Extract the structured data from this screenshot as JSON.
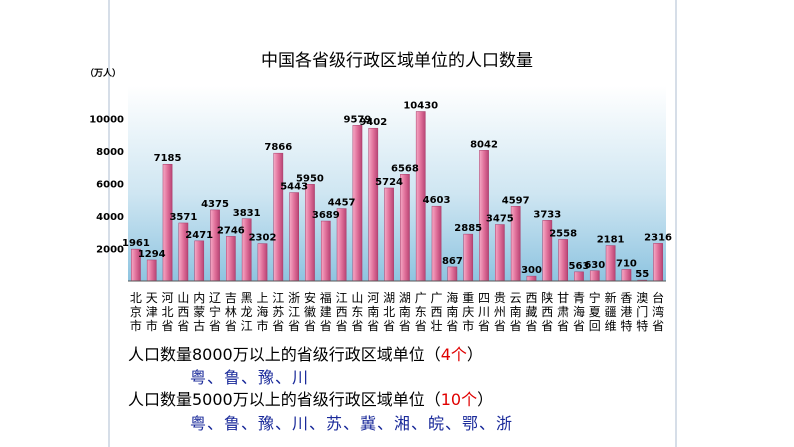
{
  "chart_data": {
    "type": "bar",
    "title": "中国各省级行政区域单位的人口数量",
    "ylabel": "（万人）",
    "ylim": [
      0,
      12000
    ],
    "yticks": [
      "0",
      "2000",
      "4000",
      "6000",
      "8000",
      "10000"
    ],
    "grid": false,
    "bar_color": "#e0709a",
    "categories": [
      {
        "name": "北京市",
        "lines": [
          "北",
          "京",
          "市"
        ]
      },
      {
        "name": "天津市",
        "lines": [
          "天",
          "津",
          "市"
        ]
      },
      {
        "name": "河北省",
        "lines": [
          "河",
          "北",
          "省"
        ]
      },
      {
        "name": "山西省",
        "lines": [
          "山",
          "西",
          "省"
        ]
      },
      {
        "name": "内蒙古",
        "lines": [
          "内",
          "蒙",
          "古"
        ]
      },
      {
        "name": "辽宁省",
        "lines": [
          "辽",
          "宁",
          "省"
        ]
      },
      {
        "name": "吉林省",
        "lines": [
          "吉",
          "林",
          "省"
        ]
      },
      {
        "name": "黑龙江",
        "lines": [
          "黑",
          "龙",
          "江"
        ]
      },
      {
        "name": "上海市",
        "lines": [
          "上",
          "海",
          "市"
        ]
      },
      {
        "name": "江苏省",
        "lines": [
          "江",
          "苏",
          "省"
        ]
      },
      {
        "name": "浙江省",
        "lines": [
          "浙",
          "江",
          "省"
        ]
      },
      {
        "name": "安徽省",
        "lines": [
          "安",
          "徽",
          "省"
        ]
      },
      {
        "name": "福建省",
        "lines": [
          "福",
          "建",
          "省"
        ]
      },
      {
        "name": "江西省",
        "lines": [
          "江",
          "西",
          "省"
        ]
      },
      {
        "name": "山东省",
        "lines": [
          "山",
          "东",
          "省"
        ]
      },
      {
        "name": "河南省",
        "lines": [
          "河",
          "南",
          "省"
        ]
      },
      {
        "name": "湖北省",
        "lines": [
          "湖",
          "北",
          "省"
        ]
      },
      {
        "name": "湖南省",
        "lines": [
          "湖",
          "南",
          "省"
        ]
      },
      {
        "name": "广东省",
        "lines": [
          "广",
          "东",
          "省"
        ]
      },
      {
        "name": "广西壮",
        "lines": [
          "广",
          "西",
          "壮"
        ]
      },
      {
        "name": "海南省",
        "lines": [
          "海",
          "南",
          "省"
        ]
      },
      {
        "name": "重庆市",
        "lines": [
          "重",
          "庆",
          "市"
        ]
      },
      {
        "name": "四川省",
        "lines": [
          "四",
          "川",
          "省"
        ]
      },
      {
        "name": "贵州省",
        "lines": [
          "贵",
          "州",
          "省"
        ]
      },
      {
        "name": "云南省",
        "lines": [
          "云",
          "南",
          "省"
        ]
      },
      {
        "name": "西藏省",
        "lines": [
          "西",
          "藏",
          "省"
        ]
      },
      {
        "name": "陕西省",
        "lines": [
          "陕",
          "西",
          "省"
        ]
      },
      {
        "name": "甘肃省",
        "lines": [
          "甘",
          "肃",
          "省"
        ]
      },
      {
        "name": "青海省",
        "lines": [
          "青",
          "海",
          "省"
        ]
      },
      {
        "name": "宁夏回",
        "lines": [
          "宁",
          "夏",
          "回"
        ]
      },
      {
        "name": "新疆维",
        "lines": [
          "新",
          "疆",
          "维"
        ]
      },
      {
        "name": "香港特",
        "lines": [
          "香",
          "港",
          "特"
        ]
      },
      {
        "name": "澳门特",
        "lines": [
          "澳",
          "门",
          "特"
        ]
      },
      {
        "name": "台湾省",
        "lines": [
          "台",
          "湾",
          "省"
        ]
      }
    ],
    "values": [
      1961,
      1294,
      7185,
      3571,
      2471,
      4375,
      2746,
      3831,
      2302,
      7866,
      5443,
      5950,
      3689,
      4457,
      9579,
      9402,
      5724,
      6568,
      10430,
      4603,
      867,
      2885,
      8042,
      3475,
      4597,
      300,
      3733,
      2558,
      563,
      630,
      2181,
      710,
      55,
      2316
    ]
  },
  "text": {
    "line1_prefix": "人口数量8000万以上的省级行政区域单位（",
    "line1_count": "4个",
    "line1_suffix": "）",
    "line2": "粤、鲁、豫、川",
    "line3_prefix": "人口数量5000万以上的省级行政区域单位（",
    "line3_count": "10个",
    "line3_suffix": "）",
    "line4": "粤、鲁、豫、川、苏、冀、湘、皖、鄂、浙"
  }
}
